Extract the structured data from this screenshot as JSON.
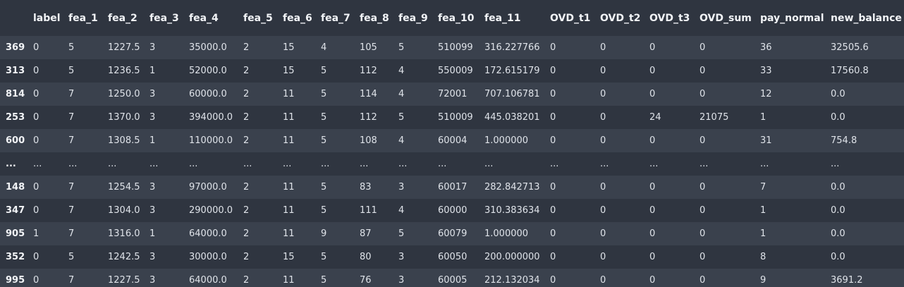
{
  "table": {
    "index_header": "",
    "columns": [
      "label",
      "fea_1",
      "fea_2",
      "fea_3",
      "fea_4",
      "fea_5",
      "fea_6",
      "fea_7",
      "fea_8",
      "fea_9",
      "fea_10",
      "fea_11",
      "OVD_t1",
      "OVD_t2",
      "OVD_t3",
      "OVD_sum",
      "pay_normal",
      "new_balance"
    ],
    "rows": [
      {
        "index": "369",
        "cells": [
          "0",
          "5",
          "1227.5",
          "3",
          "35000.0",
          "2",
          "15",
          "4",
          "105",
          "5",
          "510099",
          "316.227766",
          "0",
          "0",
          "0",
          "0",
          "36",
          "32505.6"
        ]
      },
      {
        "index": "313",
        "cells": [
          "0",
          "5",
          "1236.5",
          "1",
          "52000.0",
          "2",
          "15",
          "5",
          "112",
          "4",
          "550009",
          "172.615179",
          "0",
          "0",
          "0",
          "0",
          "33",
          "17560.8"
        ]
      },
      {
        "index": "814",
        "cells": [
          "0",
          "7",
          "1250.0",
          "3",
          "60000.0",
          "2",
          "11",
          "5",
          "114",
          "4",
          "72001",
          "707.106781",
          "0",
          "0",
          "0",
          "0",
          "12",
          "0.0"
        ]
      },
      {
        "index": "253",
        "cells": [
          "0",
          "7",
          "1370.0",
          "3",
          "394000.0",
          "2",
          "11",
          "5",
          "112",
          "5",
          "510009",
          "445.038201",
          "0",
          "0",
          "24",
          "21075",
          "1",
          "0.0"
        ]
      },
      {
        "index": "600",
        "cells": [
          "0",
          "7",
          "1308.5",
          "1",
          "110000.0",
          "2",
          "11",
          "5",
          "108",
          "4",
          "60004",
          "1.000000",
          "0",
          "0",
          "0",
          "0",
          "31",
          "754.8"
        ]
      },
      {
        "index": "...",
        "cells": [
          "...",
          "...",
          "...",
          "...",
          "...",
          "...",
          "...",
          "...",
          "...",
          "...",
          "...",
          "...",
          "...",
          "...",
          "...",
          "...",
          "...",
          "..."
        ]
      },
      {
        "index": "148",
        "cells": [
          "0",
          "7",
          "1254.5",
          "3",
          "97000.0",
          "2",
          "11",
          "5",
          "83",
          "3",
          "60017",
          "282.842713",
          "0",
          "0",
          "0",
          "0",
          "7",
          "0.0"
        ]
      },
      {
        "index": "347",
        "cells": [
          "0",
          "7",
          "1304.0",
          "3",
          "290000.0",
          "2",
          "11",
          "5",
          "111",
          "4",
          "60000",
          "310.383634",
          "0",
          "0",
          "0",
          "0",
          "1",
          "0.0"
        ]
      },
      {
        "index": "905",
        "cells": [
          "1",
          "7",
          "1316.0",
          "1",
          "64000.0",
          "2",
          "11",
          "9",
          "87",
          "5",
          "60079",
          "1.000000",
          "0",
          "0",
          "0",
          "0",
          "1",
          "0.0"
        ]
      },
      {
        "index": "352",
        "cells": [
          "0",
          "5",
          "1242.5",
          "3",
          "30000.0",
          "2",
          "15",
          "5",
          "80",
          "3",
          "60050",
          "200.000000",
          "0",
          "0",
          "0",
          "0",
          "8",
          "0.0"
        ]
      },
      {
        "index": "995",
        "cells": [
          "0",
          "7",
          "1227.5",
          "3",
          "64000.0",
          "2",
          "11",
          "5",
          "76",
          "3",
          "60005",
          "212.132034",
          "0",
          "0",
          "0",
          "0",
          "9",
          "3691.2"
        ]
      }
    ]
  }
}
